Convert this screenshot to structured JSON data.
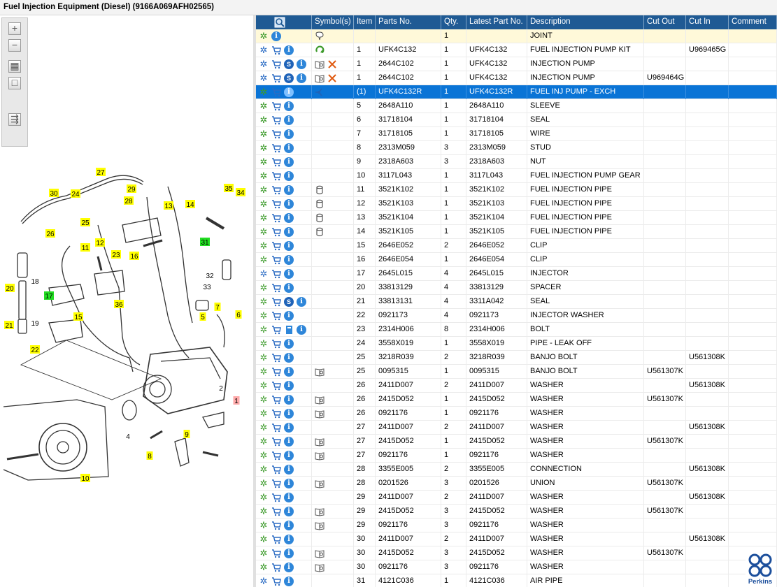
{
  "window_title": "Fuel Injection Equipment (Diesel) (9166A069AFH02565)",
  "toolbar": [
    {
      "name": "zoom-in-icon",
      "glyph": "+"
    },
    {
      "name": "zoom-out-icon",
      "glyph": "−"
    },
    {
      "name": "fit-all-icon",
      "glyph": "▦"
    },
    {
      "name": "fit-window-icon",
      "glyph": "□"
    },
    {
      "name": "export-icon",
      "glyph": "⇶"
    }
  ],
  "callouts": [
    {
      "label": "27"
    },
    {
      "label": "30"
    },
    {
      "label": "24"
    },
    {
      "label": "29"
    },
    {
      "label": "28"
    },
    {
      "label": "13"
    },
    {
      "label": "14"
    },
    {
      "label": "35"
    },
    {
      "label": "34"
    },
    {
      "label": "25"
    },
    {
      "label": "26"
    },
    {
      "label": "12"
    },
    {
      "label": "11"
    },
    {
      "label": "16"
    },
    {
      "label": "31"
    },
    {
      "label": "23"
    },
    {
      "label": "18"
    },
    {
      "label": "20"
    },
    {
      "label": "17"
    },
    {
      "label": "36"
    },
    {
      "label": "32"
    },
    {
      "label": "33"
    },
    {
      "label": "7"
    },
    {
      "label": "5"
    },
    {
      "label": "6"
    },
    {
      "label": "15"
    },
    {
      "label": "21"
    },
    {
      "label": "19"
    },
    {
      "label": "22"
    },
    {
      "label": "1"
    },
    {
      "label": "2"
    },
    {
      "label": "4"
    },
    {
      "label": "9"
    },
    {
      "label": "8"
    },
    {
      "label": "10"
    }
  ],
  "columns": [
    {
      "key": "actions",
      "label": "",
      "icon": "search-icon"
    },
    {
      "key": "symbols",
      "label": "Symbol(s)"
    },
    {
      "key": "item",
      "label": "Item"
    },
    {
      "key": "part",
      "label": "Parts No."
    },
    {
      "key": "qty",
      "label": "Qty."
    },
    {
      "key": "latest",
      "label": "Latest Part No."
    },
    {
      "key": "desc",
      "label": "Description"
    },
    {
      "key": "cutout",
      "label": "Cut Out"
    },
    {
      "key": "cutin",
      "label": "Cut In"
    },
    {
      "key": "comment",
      "label": "Comment"
    }
  ],
  "rows": [
    {
      "a": [
        "gear",
        "info"
      ],
      "sym": [
        "note"
      ],
      "item": "",
      "part": "",
      "qty": "1",
      "latest": "",
      "desc": "JOINT",
      "cutout": "",
      "cutin": "",
      "comment": "",
      "hl": true
    },
    {
      "a": [
        "gears",
        "cart",
        "info"
      ],
      "sym": [
        "recycle"
      ],
      "item": "1",
      "part": "UFK4C132",
      "qty": "1",
      "latest": "UFK4C132",
      "desc": "FUEL INJECTION PUMP KIT",
      "cutout": "",
      "cutin": "U969465G",
      "comment": ""
    },
    {
      "a": [
        "gears",
        "cart",
        "svc",
        "info"
      ],
      "sym": [
        "book",
        "cross"
      ],
      "item": "1",
      "part": "2644C102",
      "qty": "1",
      "latest": "UFK4C132",
      "desc": "INJECTION PUMP",
      "cutout": "",
      "cutin": "",
      "comment": ""
    },
    {
      "a": [
        "gears",
        "cart",
        "svc",
        "info"
      ],
      "sym": [
        "book",
        "cross"
      ],
      "item": "1",
      "part": "2644C102",
      "qty": "1",
      "latest": "UFK4C132",
      "desc": "INJECTION PUMP",
      "cutout": "U969464G",
      "cutin": "",
      "comment": ""
    },
    {
      "a": [
        "gear",
        "cart",
        "info"
      ],
      "sym": [
        "branch"
      ],
      "item": "(1)",
      "part": "UFK4C132R",
      "qty": "1",
      "latest": "UFK4C132R",
      "desc": "FUEL INJ PUMP - EXCH",
      "cutout": "",
      "cutin": "",
      "comment": "",
      "sel": true
    },
    {
      "a": [
        "gear",
        "cart",
        "info"
      ],
      "sym": [],
      "item": "5",
      "part": "2648A110",
      "qty": "1",
      "latest": "2648A110",
      "desc": "SLEEVE",
      "cutout": "",
      "cutin": "",
      "comment": ""
    },
    {
      "a": [
        "gear",
        "cart",
        "info"
      ],
      "sym": [],
      "item": "6",
      "part": "31718104",
      "qty": "1",
      "latest": "31718104",
      "desc": "SEAL",
      "cutout": "",
      "cutin": "",
      "comment": ""
    },
    {
      "a": [
        "gear",
        "cart",
        "info"
      ],
      "sym": [],
      "item": "7",
      "part": "31718105",
      "qty": "1",
      "latest": "31718105",
      "desc": "WIRE",
      "cutout": "",
      "cutin": "",
      "comment": ""
    },
    {
      "a": [
        "gear",
        "cart",
        "info"
      ],
      "sym": [],
      "item": "8",
      "part": "2313M059",
      "qty": "3",
      "latest": "2313M059",
      "desc": "STUD",
      "cutout": "",
      "cutin": "",
      "comment": ""
    },
    {
      "a": [
        "gear",
        "cart",
        "info"
      ],
      "sym": [],
      "item": "9",
      "part": "2318A603",
      "qty": "3",
      "latest": "2318A603",
      "desc": "NUT",
      "cutout": "",
      "cutin": "",
      "comment": ""
    },
    {
      "a": [
        "gear",
        "cart",
        "info"
      ],
      "sym": [],
      "item": "10",
      "part": "3117L043",
      "qty": "1",
      "latest": "3117L043",
      "desc": "FUEL INJECTION PUMP GEAR",
      "cutout": "",
      "cutin": "",
      "comment": ""
    },
    {
      "a": [
        "gear",
        "cart",
        "info"
      ],
      "sym": [
        "cyl"
      ],
      "item": "11",
      "part": "3521K102",
      "qty": "1",
      "latest": "3521K102",
      "desc": "FUEL INJECTION PIPE",
      "cutout": "",
      "cutin": "",
      "comment": ""
    },
    {
      "a": [
        "gear",
        "cart",
        "info"
      ],
      "sym": [
        "cyl"
      ],
      "item": "12",
      "part": "3521K103",
      "qty": "1",
      "latest": "3521K103",
      "desc": "FUEL INJECTION PIPE",
      "cutout": "",
      "cutin": "",
      "comment": ""
    },
    {
      "a": [
        "gear",
        "cart",
        "info"
      ],
      "sym": [
        "cyl"
      ],
      "item": "13",
      "part": "3521K104",
      "qty": "1",
      "latest": "3521K104",
      "desc": "FUEL INJECTION PIPE",
      "cutout": "",
      "cutin": "",
      "comment": ""
    },
    {
      "a": [
        "gear",
        "cart",
        "info"
      ],
      "sym": [
        "cyl"
      ],
      "item": "14",
      "part": "3521K105",
      "qty": "1",
      "latest": "3521K105",
      "desc": "FUEL INJECTION PIPE",
      "cutout": "",
      "cutin": "",
      "comment": ""
    },
    {
      "a": [
        "gear",
        "cart",
        "info"
      ],
      "sym": [],
      "item": "15",
      "part": "2646E052",
      "qty": "2",
      "latest": "2646E052",
      "desc": "CLIP",
      "cutout": "",
      "cutin": "",
      "comment": ""
    },
    {
      "a": [
        "gear",
        "cart",
        "info"
      ],
      "sym": [],
      "item": "16",
      "part": "2646E054",
      "qty": "1",
      "latest": "2646E054",
      "desc": "CLIP",
      "cutout": "",
      "cutin": "",
      "comment": ""
    },
    {
      "a": [
        "gears",
        "cart",
        "info"
      ],
      "sym": [],
      "item": "17",
      "part": "2645L015",
      "qty": "4",
      "latest": "2645L015",
      "desc": "INJECTOR",
      "cutout": "",
      "cutin": "",
      "comment": ""
    },
    {
      "a": [
        "gear",
        "cart",
        "info"
      ],
      "sym": [],
      "item": "20",
      "part": "33813129",
      "qty": "4",
      "latest": "33813129",
      "desc": "SPACER",
      "cutout": "",
      "cutin": "",
      "comment": ""
    },
    {
      "a": [
        "gear",
        "cart",
        "svc",
        "info"
      ],
      "sym": [],
      "item": "21",
      "part": "33813131",
      "qty": "4",
      "latest": "3311A042",
      "desc": "SEAL",
      "cutout": "",
      "cutin": "",
      "comment": ""
    },
    {
      "a": [
        "gear",
        "cart",
        "info"
      ],
      "sym": [],
      "item": "22",
      "part": "0921173",
      "qty": "4",
      "latest": "0921173",
      "desc": "INJECTOR WASHER",
      "cutout": "",
      "cutin": "",
      "comment": ""
    },
    {
      "a": [
        "gear",
        "cart",
        "doc",
        "info"
      ],
      "sym": [],
      "item": "23",
      "part": "2314H006",
      "qty": "8",
      "latest": "2314H006",
      "desc": "BOLT",
      "cutout": "",
      "cutin": "",
      "comment": ""
    },
    {
      "a": [
        "gear",
        "cart",
        "info"
      ],
      "sym": [],
      "item": "24",
      "part": "3558X019",
      "qty": "1",
      "latest": "3558X019",
      "desc": "PIPE - LEAK OFF",
      "cutout": "",
      "cutin": "",
      "comment": ""
    },
    {
      "a": [
        "gear",
        "cart",
        "info"
      ],
      "sym": [],
      "item": "25",
      "part": "3218R039",
      "qty": "2",
      "latest": "3218R039",
      "desc": "BANJO BOLT",
      "cutout": "",
      "cutin": "U561308K",
      "comment": ""
    },
    {
      "a": [
        "gear",
        "cart",
        "info"
      ],
      "sym": [
        "book"
      ],
      "item": "25",
      "part": "0095315",
      "qty": "1",
      "latest": "0095315",
      "desc": "BANJO BOLT",
      "cutout": "U561307K",
      "cutin": "",
      "comment": ""
    },
    {
      "a": [
        "gear",
        "cart",
        "info"
      ],
      "sym": [],
      "item": "26",
      "part": "2411D007",
      "qty": "2",
      "latest": "2411D007",
      "desc": "WASHER",
      "cutout": "",
      "cutin": "U561308K",
      "comment": ""
    },
    {
      "a": [
        "gear",
        "cart",
        "info"
      ],
      "sym": [
        "book"
      ],
      "item": "26",
      "part": "2415D052",
      "qty": "1",
      "latest": "2415D052",
      "desc": "WASHER",
      "cutout": "U561307K",
      "cutin": "",
      "comment": ""
    },
    {
      "a": [
        "gear",
        "cart",
        "info"
      ],
      "sym": [
        "book"
      ],
      "item": "26",
      "part": "0921176",
      "qty": "1",
      "latest": "0921176",
      "desc": "WASHER",
      "cutout": "",
      "cutin": "",
      "comment": ""
    },
    {
      "a": [
        "gear",
        "cart",
        "info"
      ],
      "sym": [],
      "item": "27",
      "part": "2411D007",
      "qty": "2",
      "latest": "2411D007",
      "desc": "WASHER",
      "cutout": "",
      "cutin": "U561308K",
      "comment": ""
    },
    {
      "a": [
        "gear",
        "cart",
        "info"
      ],
      "sym": [
        "book"
      ],
      "item": "27",
      "part": "2415D052",
      "qty": "1",
      "latest": "2415D052",
      "desc": "WASHER",
      "cutout": "U561307K",
      "cutin": "",
      "comment": ""
    },
    {
      "a": [
        "gear",
        "cart",
        "info"
      ],
      "sym": [
        "book"
      ],
      "item": "27",
      "part": "0921176",
      "qty": "1",
      "latest": "0921176",
      "desc": "WASHER",
      "cutout": "",
      "cutin": "",
      "comment": ""
    },
    {
      "a": [
        "gear",
        "cart",
        "info"
      ],
      "sym": [],
      "item": "28",
      "part": "3355E005",
      "qty": "2",
      "latest": "3355E005",
      "desc": "CONNECTION",
      "cutout": "",
      "cutin": "U561308K",
      "comment": ""
    },
    {
      "a": [
        "gear",
        "cart",
        "info"
      ],
      "sym": [
        "book"
      ],
      "item": "28",
      "part": "0201526",
      "qty": "3",
      "latest": "0201526",
      "desc": "UNION",
      "cutout": "U561307K",
      "cutin": "",
      "comment": ""
    },
    {
      "a": [
        "gear",
        "cart",
        "info"
      ],
      "sym": [],
      "item": "29",
      "part": "2411D007",
      "qty": "2",
      "latest": "2411D007",
      "desc": "WASHER",
      "cutout": "",
      "cutin": "U561308K",
      "comment": ""
    },
    {
      "a": [
        "gear",
        "cart",
        "info"
      ],
      "sym": [
        "book"
      ],
      "item": "29",
      "part": "2415D052",
      "qty": "3",
      "latest": "2415D052",
      "desc": "WASHER",
      "cutout": "U561307K",
      "cutin": "",
      "comment": ""
    },
    {
      "a": [
        "gear",
        "cart",
        "info"
      ],
      "sym": [
        "book"
      ],
      "item": "29",
      "part": "0921176",
      "qty": "3",
      "latest": "0921176",
      "desc": "WASHER",
      "cutout": "",
      "cutin": "",
      "comment": ""
    },
    {
      "a": [
        "gear",
        "cart",
        "info"
      ],
      "sym": [],
      "item": "30",
      "part": "2411D007",
      "qty": "2",
      "latest": "2411D007",
      "desc": "WASHER",
      "cutout": "",
      "cutin": "U561308K",
      "comment": ""
    },
    {
      "a": [
        "gear",
        "cart",
        "info"
      ],
      "sym": [
        "book"
      ],
      "item": "30",
      "part": "2415D052",
      "qty": "3",
      "latest": "2415D052",
      "desc": "WASHER",
      "cutout": "U561307K",
      "cutin": "",
      "comment": ""
    },
    {
      "a": [
        "gear",
        "cart",
        "info"
      ],
      "sym": [
        "book"
      ],
      "item": "30",
      "part": "0921176",
      "qty": "3",
      "latest": "0921176",
      "desc": "WASHER",
      "cutout": "",
      "cutin": "",
      "comment": ""
    },
    {
      "a": [
        "gears",
        "cart",
        "info"
      ],
      "sym": [],
      "item": "31",
      "part": "4121C036",
      "qty": "1",
      "latest": "4121C036",
      "desc": "AIR PIPE",
      "cutout": "",
      "cutin": "",
      "comment": ""
    }
  ],
  "brand": {
    "name": "Perkins",
    "color": "#1c4f9c"
  },
  "colors": {
    "header": "#1f5a94",
    "selected": "#0a74d6",
    "highlight": "#fff9d9",
    "callout": "#ffff00",
    "callout_green": "#22dd22",
    "callout_pink": "#ffaaaa"
  }
}
